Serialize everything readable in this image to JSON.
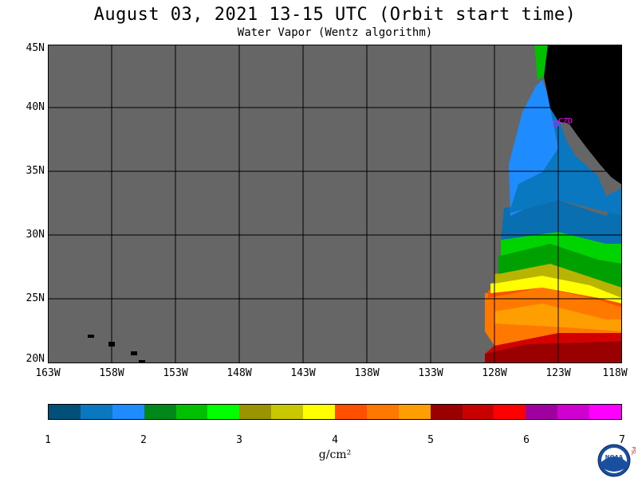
{
  "title": "August 03, 2021  13-15 UTC  (Orbit start time)",
  "subtitle": "Water Vapor (Wentz algorithm)",
  "lat_labels": [
    "45N",
    "40N",
    "35N",
    "30N",
    "25N",
    "20N"
  ],
  "lon_labels": [
    "163W",
    "158W",
    "153W",
    "148W",
    "143W",
    "138W",
    "133W",
    "128W",
    "123W",
    "118W"
  ],
  "station_label": "CZD",
  "colorbar": {
    "unit": "g/cm²",
    "ticks": [
      "1",
      "2",
      "3",
      "4",
      "5",
      "6",
      "7"
    ],
    "colors": [
      "#00507a",
      "#0a78c0",
      "#1e8cff",
      "#00881a",
      "#00c000",
      "#00ff00",
      "#9a9400",
      "#c8c800",
      "#ffff00",
      "#ff5000",
      "#ff7800",
      "#ff9e00",
      "#9a0000",
      "#c80000",
      "#ff0000",
      "#a000a0",
      "#d000d0",
      "#ff00ff"
    ]
  },
  "map_colors": {
    "no_data": "#666666",
    "land": "#000000",
    "grid": "#000000",
    "station": "#ff00ff"
  },
  "logo": {
    "text": "NOAA",
    "side_text": "PSL"
  }
}
